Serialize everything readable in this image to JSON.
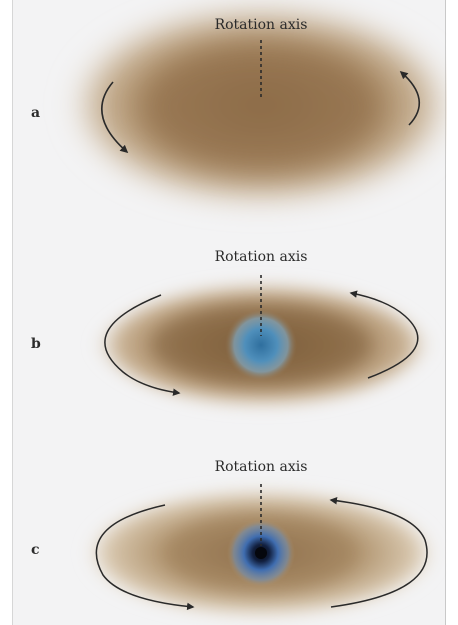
{
  "panels": [
    {
      "letter": "a",
      "axis_label": "Rotation axis"
    },
    {
      "letter": "b",
      "axis_label": "Rotation axis"
    },
    {
      "letter": "c",
      "axis_label": "Rotation axis"
    }
  ],
  "colors": {
    "cloud_brown": "#9a7a55",
    "cloud_dark": "#7d5f3e",
    "core_blue": "#3b7fb0",
    "core_black": "#05070d",
    "arrow": "#2a2a2a",
    "background": "#f3f3f4"
  }
}
